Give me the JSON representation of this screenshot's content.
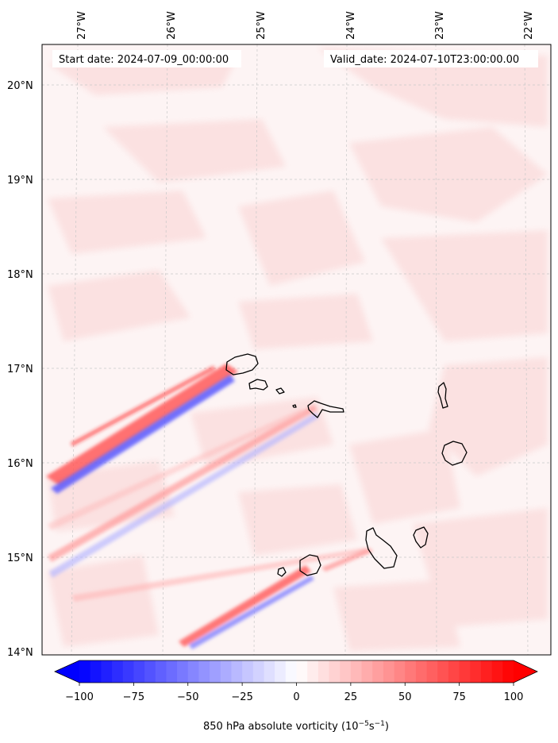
{
  "header": {
    "start_label": "Start date: 2024-07-09_00:00:00",
    "valid_label": "Valid_date: 2024-07-10T23:00:00.00"
  },
  "axes": {
    "lon_labels": [
      "27°W",
      "26°W",
      "25°W",
      "24°W",
      "23°W",
      "22°W"
    ],
    "lat_labels": [
      "20°N",
      "19°N",
      "18°N",
      "17°N",
      "16°N",
      "15°N",
      "14°N"
    ],
    "lon_values": [
      -27,
      -26,
      -25,
      -24,
      -23,
      -22
    ],
    "lat_values": [
      20,
      19,
      18,
      17,
      16,
      15,
      14
    ]
  },
  "colorbar": {
    "label": "850 hPa absolute vorticity (10",
    "label_exp1": "−5",
    "label_mid": "s",
    "label_exp2": "−1",
    "label_end": ")",
    "tick_labels": [
      "−100",
      "−75",
      "−50",
      "−25",
      "0",
      "25",
      "50",
      "75",
      "100"
    ],
    "ticks": [
      -100,
      -75,
      -50,
      -25,
      0,
      25,
      50,
      75,
      100
    ],
    "min": -100,
    "max": 100,
    "colors": {
      "low": "#0000ff",
      "mid": "#ffffff",
      "high": "#ff0000"
    }
  },
  "map": {
    "background_color": "#fdf3f3",
    "island_outline_color": "#000000",
    "gridlines": true
  }
}
